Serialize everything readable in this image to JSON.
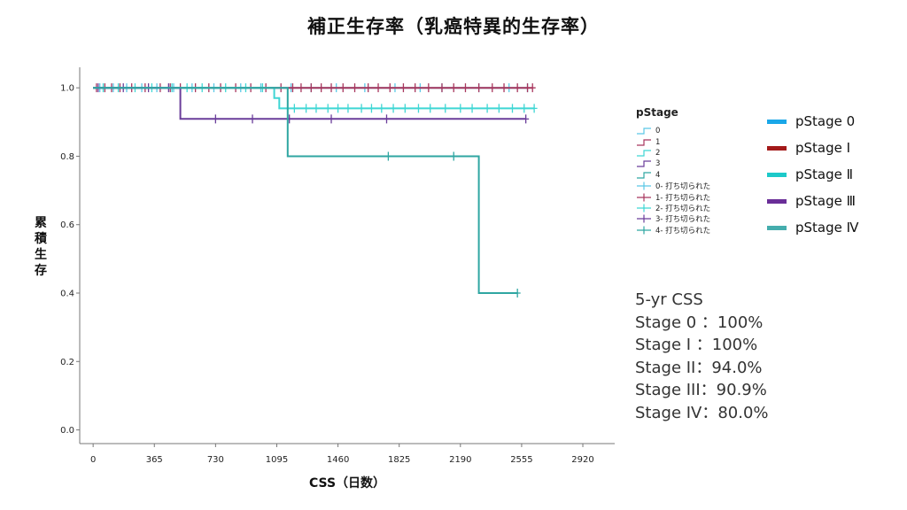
{
  "title": "補正生存率（乳癌特異的生存率）",
  "chart_data": {
    "type": "line",
    "subtype": "kaplan-meier-step",
    "title": "補正生存率（乳癌特異的生存率）",
    "xlabel": "CSS（日数）",
    "ylabel": "累積生存",
    "xlim": [
      -80,
      3110
    ],
    "ylim": [
      -0.04,
      1.06
    ],
    "xticks": [
      0,
      365,
      730,
      1095,
      1460,
      1825,
      2190,
      2555,
      2920
    ],
    "yticks": [
      0.0,
      0.2,
      0.4,
      0.6,
      0.8,
      1.0
    ],
    "ytick_labels": [
      "0.0",
      "0.2",
      "0.4",
      "0.6",
      "0.8",
      "1.0"
    ],
    "grid": false,
    "legend_title": "pStage",
    "legend_position": "right",
    "series": [
      {
        "name": "0",
        "censor_name": "0- 打ち切られた",
        "color": "#5bc8e6",
        "steps": [
          [
            0,
            1.0
          ],
          [
            2590,
            1.0
          ]
        ],
        "censored": [
          [
            40,
            1.0
          ],
          [
            120,
            1.0
          ],
          [
            200,
            1.0
          ],
          [
            290,
            1.0
          ],
          [
            380,
            1.0
          ],
          [
            480,
            1.0
          ],
          [
            590,
            1.0
          ],
          [
            720,
            1.0
          ],
          [
            880,
            1.0
          ],
          [
            1000,
            1.0
          ],
          [
            1180,
            1.0
          ],
          [
            1300,
            1.0
          ],
          [
            1450,
            1.0
          ],
          [
            1620,
            1.0
          ],
          [
            1800,
            1.0
          ],
          [
            1950,
            1.0
          ],
          [
            2080,
            1.0
          ],
          [
            2300,
            1.0
          ],
          [
            2480,
            1.0
          ],
          [
            2590,
            1.0
          ]
        ]
      },
      {
        "name": "1",
        "censor_name": "1- 打ち切られた",
        "color": "#a8365d",
        "steps": [
          [
            0,
            1.0
          ],
          [
            2620,
            1.0
          ]
        ],
        "censored": [
          [
            20,
            1.0
          ],
          [
            70,
            1.0
          ],
          [
            110,
            1.0
          ],
          [
            160,
            1.0
          ],
          [
            230,
            1.0
          ],
          [
            310,
            1.0
          ],
          [
            400,
            1.0
          ],
          [
            460,
            1.0
          ],
          [
            520,
            1.0
          ],
          [
            610,
            1.0
          ],
          [
            690,
            1.0
          ],
          [
            760,
            1.0
          ],
          [
            850,
            1.0
          ],
          [
            940,
            1.0
          ],
          [
            1030,
            1.0
          ],
          [
            1120,
            1.0
          ],
          [
            1190,
            1.0
          ],
          [
            1240,
            1.0
          ],
          [
            1300,
            1.0
          ],
          [
            1360,
            1.0
          ],
          [
            1420,
            1.0
          ],
          [
            1490,
            1.0
          ],
          [
            1560,
            1.0
          ],
          [
            1640,
            1.0
          ],
          [
            1700,
            1.0
          ],
          [
            1770,
            1.0
          ],
          [
            1850,
            1.0
          ],
          [
            1920,
            1.0
          ],
          [
            2000,
            1.0
          ],
          [
            2080,
            1.0
          ],
          [
            2150,
            1.0
          ],
          [
            2220,
            1.0
          ],
          [
            2300,
            1.0
          ],
          [
            2380,
            1.0
          ],
          [
            2450,
            1.0
          ],
          [
            2530,
            1.0
          ],
          [
            2590,
            1.0
          ],
          [
            2620,
            1.0
          ]
        ]
      },
      {
        "name": "2",
        "censor_name": "2- 打ち切られた",
        "color": "#3fd6d4",
        "steps": [
          [
            0,
            1.0
          ],
          [
            1080,
            1.0
          ],
          [
            1080,
            0.97
          ],
          [
            1110,
            0.97
          ],
          [
            1110,
            0.94
          ],
          [
            2630,
            0.94
          ]
        ],
        "censored": [
          [
            60,
            1.0
          ],
          [
            150,
            1.0
          ],
          [
            250,
            1.0
          ],
          [
            350,
            1.0
          ],
          [
            470,
            1.0
          ],
          [
            560,
            1.0
          ],
          [
            650,
            1.0
          ],
          [
            790,
            1.0
          ],
          [
            910,
            1.0
          ],
          [
            1010,
            1.0
          ],
          [
            1200,
            0.94
          ],
          [
            1270,
            0.94
          ],
          [
            1330,
            0.94
          ],
          [
            1400,
            0.94
          ],
          [
            1460,
            0.94
          ],
          [
            1520,
            0.94
          ],
          [
            1600,
            0.94
          ],
          [
            1660,
            0.94
          ],
          [
            1720,
            0.94
          ],
          [
            1790,
            0.94
          ],
          [
            1860,
            0.94
          ],
          [
            1940,
            0.94
          ],
          [
            2010,
            0.94
          ],
          [
            2100,
            0.94
          ],
          [
            2190,
            0.94
          ],
          [
            2260,
            0.94
          ],
          [
            2350,
            0.94
          ],
          [
            2420,
            0.94
          ],
          [
            2500,
            0.94
          ],
          [
            2570,
            0.94
          ],
          [
            2630,
            0.94
          ]
        ]
      },
      {
        "name": "3",
        "censor_name": "3- 打ち切られた",
        "color": "#6a3d9a",
        "steps": [
          [
            0,
            1.0
          ],
          [
            520,
            1.0
          ],
          [
            520,
            0.909
          ],
          [
            2580,
            0.909
          ]
        ],
        "censored": [
          [
            30,
            1.0
          ],
          [
            180,
            1.0
          ],
          [
            330,
            1.0
          ],
          [
            450,
            1.0
          ],
          [
            730,
            0.909
          ],
          [
            950,
            0.909
          ],
          [
            1170,
            0.909
          ],
          [
            1420,
            0.909
          ],
          [
            1750,
            0.909
          ],
          [
            2580,
            0.909
          ]
        ]
      },
      {
        "name": "4",
        "censor_name": "4- 打ち切られた",
        "color": "#2fa6a2",
        "steps": [
          [
            0,
            1.0
          ],
          [
            1160,
            1.0
          ],
          [
            1160,
            0.8
          ],
          [
            2300,
            0.8
          ],
          [
            2300,
            0.4
          ],
          [
            2530,
            0.4
          ]
        ],
        "censored": [
          [
            1760,
            0.8
          ],
          [
            2150,
            0.8
          ],
          [
            2530,
            0.4
          ]
        ]
      }
    ]
  },
  "big_legend": [
    {
      "label": "pStage 0",
      "color": "#1aa7e8"
    },
    {
      "label": "pStage Ⅰ",
      "color": "#a31a1a"
    },
    {
      "label": "pStage Ⅱ",
      "color": "#1dc9c9"
    },
    {
      "label": "pStage Ⅲ",
      "color": "#6a2e98"
    },
    {
      "label": "pStage Ⅳ",
      "color": "#45adad"
    }
  ],
  "css_summary": {
    "heading": "5-yr CSS",
    "lines": [
      "Stage 0 ：100%",
      "Stage Ⅰ ：100%",
      "Stage II：94.0%",
      "Stage III：90.9%",
      "Stage IV：80.0%"
    ]
  }
}
